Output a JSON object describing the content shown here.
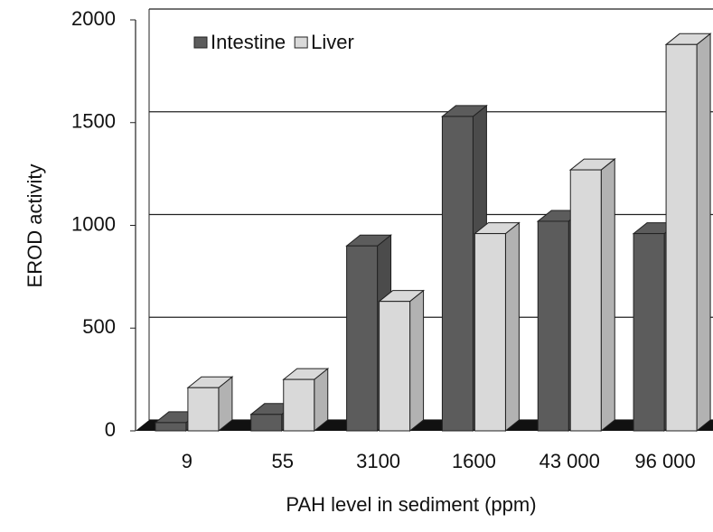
{
  "chart_data": {
    "type": "bar3d",
    "xlabel": "PAH level in sediment (ppm)",
    "ylabel": "EROD activity",
    "categories": [
      "9",
      "55",
      "3100",
      "1600",
      "43 000",
      "96 000"
    ],
    "series": [
      {
        "name": "Intestine",
        "color": "#5c5c5c",
        "values": [
          40,
          80,
          900,
          1530,
          1020,
          960
        ]
      },
      {
        "name": "Liver",
        "color": "#d9d9d9",
        "values": [
          210,
          250,
          630,
          960,
          1270,
          1880
        ]
      }
    ],
    "ylim": [
      0,
      2000
    ],
    "yticks": [
      0,
      500,
      1000,
      1500,
      2000
    ],
    "grid": true
  }
}
